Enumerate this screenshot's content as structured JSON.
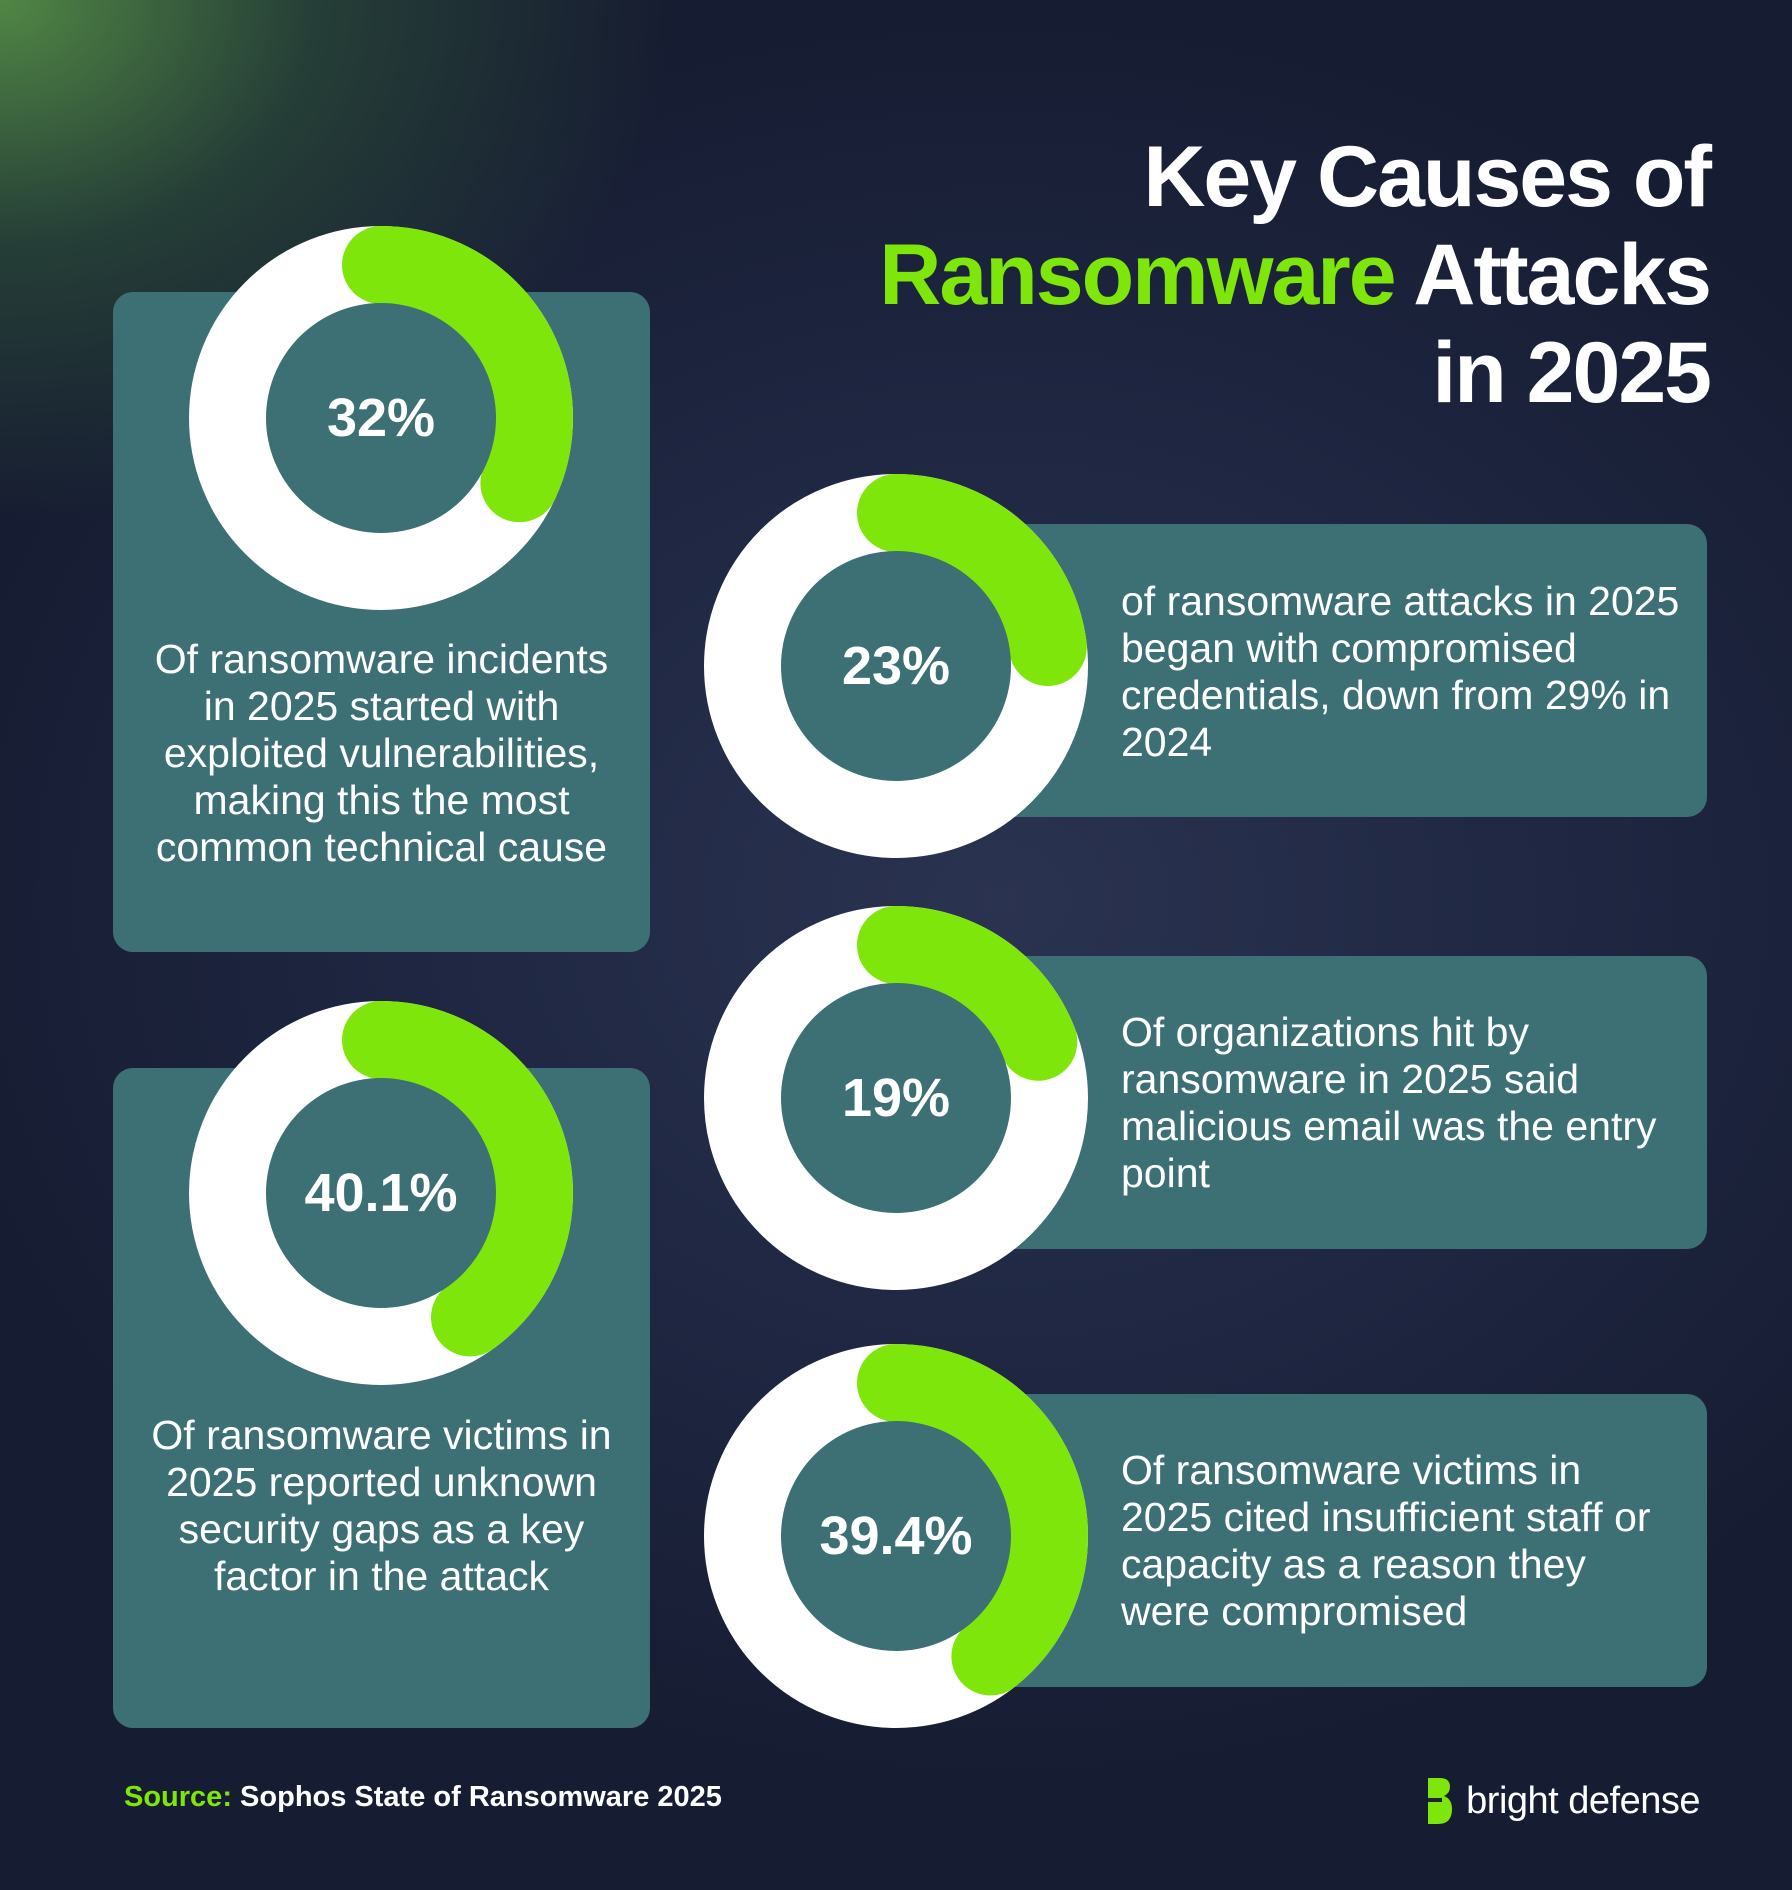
{
  "title": {
    "line1": "Key Causes of",
    "highlight": "Ransomware",
    "line2_rest": " Attacks",
    "line3": "in 2025"
  },
  "colors": {
    "accent": "#7ee60a",
    "ring": "#ffffff",
    "card": "#3c7074",
    "hole": "#3c7074"
  },
  "chart_data": {
    "type": "pie",
    "values": [
      32,
      23,
      19,
      40.1,
      39.4
    ],
    "labels": [
      "32%",
      "23%",
      "19%",
      "40.1%",
      "39.4%"
    ]
  },
  "stats": [
    {
      "id": "exploited-vulnerabilities",
      "value": 32,
      "label": "32%",
      "text": "Of ransomware incidents in 2025 started with exploited vulnerabilities, making this the most common technical cause"
    },
    {
      "id": "compromised-credentials",
      "value": 23,
      "label": "23%",
      "text": "of ransomware attacks in 2025 began with compromised credentials, down from 29% in 2024"
    },
    {
      "id": "malicious-email",
      "value": 19,
      "label": "19%",
      "text": "Of organizations hit by ransomware in 2025 said malicious email was the entry point"
    },
    {
      "id": "unknown-security-gaps",
      "value": 40.1,
      "label": "40.1%",
      "text": "Of ransomware victims in 2025 reported unknown security gaps as a key factor in the attack"
    },
    {
      "id": "insufficient-staff",
      "value": 39.4,
      "label": "39.4%",
      "text": "Of ransomware victims in 2025 cited insufficient staff or capacity as a reason they were compromised"
    }
  ],
  "footer": {
    "source_label": "Source:",
    "source_text": " Sophos State of Ransomware 2025",
    "brand": "bright defense",
    "brand_icon": "bright-defense-logo-icon"
  }
}
